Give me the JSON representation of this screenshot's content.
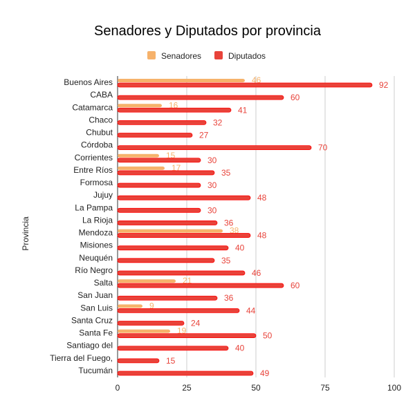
{
  "chart_data": {
    "type": "bar",
    "orientation": "horizontal",
    "title": "Senadores y Diputados por provincia",
    "xlabel": "",
    "ylabel": "Provincia",
    "xlim": [
      0,
      100
    ],
    "xticks": [
      0,
      25,
      50,
      75,
      100
    ],
    "grid": true,
    "legend_position": "top",
    "categories": [
      "Buenos Aires",
      "CABA",
      "Catamarca",
      "Chaco",
      "Chubut",
      "Córdoba",
      "Corrientes",
      "Entre Ríos",
      "Formosa",
      "Jujuy",
      "La Pampa",
      "La Rioja",
      "Mendoza",
      "Misiones",
      "Neuquén",
      "Río Negro",
      "Salta",
      "San Juan",
      "San Luis",
      "Santa Cruz",
      "Santa Fe",
      "Santiago del",
      "Tierra del Fuego,",
      "Tucumán"
    ],
    "series": [
      {
        "name": "Senadores",
        "color": "#f6b26b",
        "values": [
          46,
          null,
          16,
          null,
          null,
          null,
          15,
          17,
          null,
          null,
          null,
          null,
          38,
          null,
          null,
          null,
          21,
          null,
          9,
          null,
          19,
          null,
          null,
          null
        ]
      },
      {
        "name": "Diputados",
        "color": "#e8433a",
        "values": [
          92,
          60,
          41,
          32,
          27,
          70,
          30,
          35,
          30,
          48,
          30,
          36,
          48,
          40,
          35,
          46,
          60,
          36,
          44,
          24,
          50,
          40,
          15,
          49
        ]
      }
    ]
  }
}
